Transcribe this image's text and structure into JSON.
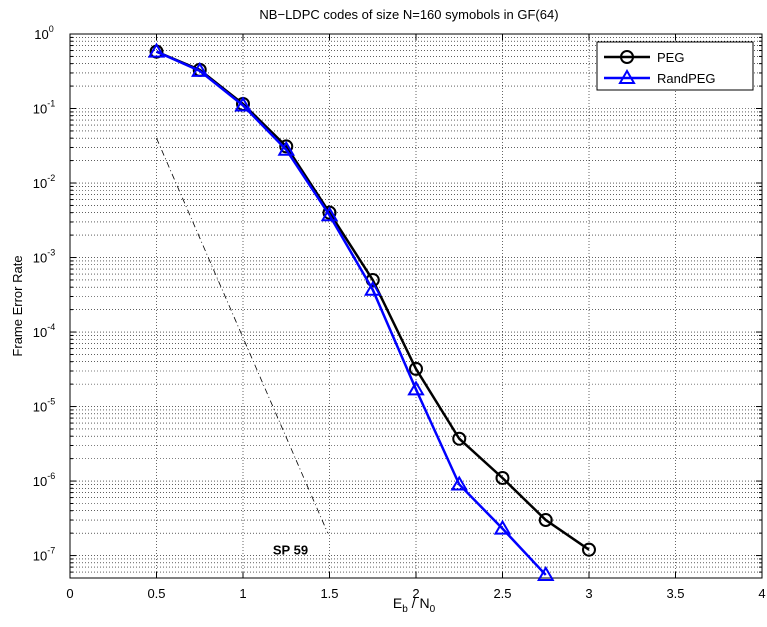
{
  "chart_data": {
    "type": "line",
    "title": "NB−LDPC codes of size N=160 symobols in GF(64)",
    "ylabel": "Frame Error Rate",
    "xlabel": {
      "main": "E",
      "sub1": "b",
      "mid": " / N",
      "sub2": "0"
    },
    "xlim": [
      0,
      4
    ],
    "ylim": [
      5e-08,
      1
    ],
    "yscale": "log",
    "grid": true,
    "legend_position": "top-right",
    "xticks": [
      {
        "v": 0,
        "label": "0"
      },
      {
        "v": 0.5,
        "label": "0.5"
      },
      {
        "v": 1,
        "label": "1"
      },
      {
        "v": 1.5,
        "label": "1.5"
      },
      {
        "v": 2,
        "label": "2"
      },
      {
        "v": 2.5,
        "label": "2.5"
      },
      {
        "v": 3,
        "label": "3"
      },
      {
        "v": 3.5,
        "label": "3.5"
      },
      {
        "v": 4,
        "label": "4"
      }
    ],
    "yticks": [
      {
        "v": 1,
        "base": "10",
        "exp": "0"
      },
      {
        "v": 0.1,
        "base": "10",
        "exp": "-1"
      },
      {
        "v": 0.01,
        "base": "10",
        "exp": "-2"
      },
      {
        "v": 0.001,
        "base": "10",
        "exp": "-3"
      },
      {
        "v": 0.0001,
        "base": "10",
        "exp": "-4"
      },
      {
        "v": 1e-05,
        "base": "10",
        "exp": "-5"
      },
      {
        "v": 1e-06,
        "base": "10",
        "exp": "-6"
      },
      {
        "v": 1e-07,
        "base": "10",
        "exp": "-7"
      }
    ],
    "series": [
      {
        "name": "PEG",
        "color": "#000000",
        "marker": "circle",
        "x": [
          0.5,
          0.75,
          1.0,
          1.25,
          1.5,
          1.75,
          2.0,
          2.25,
          2.5,
          2.75,
          3.0
        ],
        "y": [
          0.58,
          0.33,
          0.115,
          0.031,
          0.004,
          0.0005,
          3.2e-05,
          3.7e-06,
          1.1e-06,
          3e-07,
          1.2e-07
        ]
      },
      {
        "name": "RandPEG",
        "color": "#0000ff",
        "marker": "triangle",
        "x": [
          0.5,
          0.75,
          1.0,
          1.25,
          1.5,
          1.75,
          2.0,
          2.25,
          2.5,
          2.75
        ],
        "y": [
          0.58,
          0.32,
          0.11,
          0.028,
          0.0037,
          0.00037,
          1.7e-05,
          9e-07,
          2.3e-07,
          5.5e-08
        ]
      }
    ],
    "reference_line": {
      "style": "dash-dot",
      "color": "#000000",
      "x": [
        0.5,
        1.49
      ],
      "y": [
        0.04,
        2e-07
      ]
    },
    "annotation": {
      "text": "SP 59",
      "x": 1.3,
      "y": 1.4e-07
    }
  }
}
